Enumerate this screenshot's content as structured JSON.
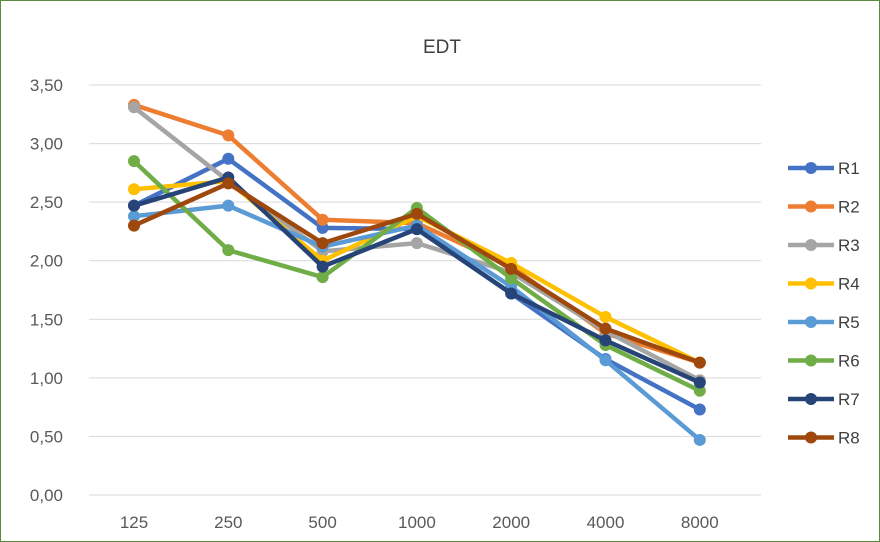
{
  "chart_data": {
    "type": "line",
    "title": "EDT",
    "xlabel": "",
    "ylabel": "",
    "categories": [
      "125",
      "250",
      "500",
      "1000",
      "2000",
      "4000",
      "8000"
    ],
    "ylim": [
      0,
      3.5
    ],
    "yticks": [
      "0,00",
      "0,50",
      "1,00",
      "1,50",
      "2,00",
      "2,50",
      "3,00",
      "3,50"
    ],
    "grid": true,
    "legend_position": "right",
    "series": [
      {
        "name": "R1",
        "color": "#4472c4",
        "values": [
          2.47,
          2.87,
          2.28,
          2.27,
          1.72,
          1.16,
          0.73
        ]
      },
      {
        "name": "R2",
        "color": "#ed7d31",
        "values": [
          3.33,
          3.07,
          2.35,
          2.32,
          1.95,
          1.38,
          1.13
        ]
      },
      {
        "name": "R3",
        "color": "#a5a5a5",
        "values": [
          3.31,
          2.68,
          2.08,
          2.15,
          1.9,
          1.4,
          0.98
        ]
      },
      {
        "name": "R4",
        "color": "#ffc000",
        "values": [
          2.61,
          2.68,
          2.0,
          2.38,
          1.98,
          1.52,
          1.13
        ]
      },
      {
        "name": "R5",
        "color": "#5b9bd5",
        "values": [
          2.38,
          2.47,
          2.12,
          2.3,
          1.78,
          1.15,
          0.47
        ]
      },
      {
        "name": "R6",
        "color": "#70ad47",
        "values": [
          2.85,
          2.09,
          1.86,
          2.45,
          1.85,
          1.28,
          0.89
        ]
      },
      {
        "name": "R7",
        "color": "#264478",
        "values": [
          2.47,
          2.71,
          1.95,
          2.27,
          1.72,
          1.32,
          0.96
        ]
      },
      {
        "name": "R8",
        "color": "#9e480e",
        "values": [
          2.3,
          2.66,
          2.15,
          2.4,
          1.93,
          1.42,
          1.13
        ]
      }
    ]
  }
}
